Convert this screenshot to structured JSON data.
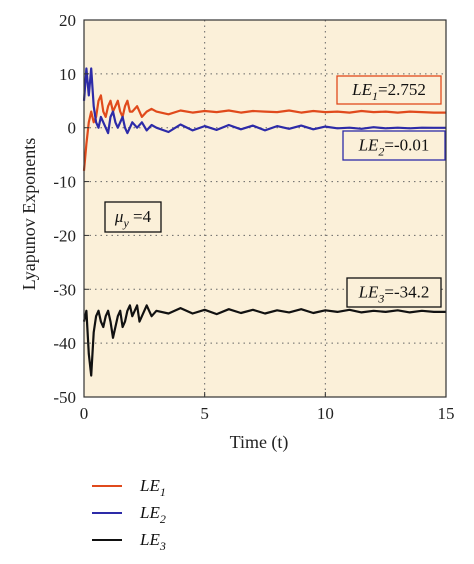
{
  "chart_data": {
    "type": "line",
    "xlabel": "Time (t)",
    "ylabel": "Lyapunov Exponents",
    "xlim": [
      0,
      15
    ],
    "ylim": [
      -50,
      20
    ],
    "xticks": [
      "0",
      "5",
      "10",
      "15"
    ],
    "yticks": [
      "20",
      "10",
      "0",
      "-10",
      "-20",
      "-30",
      "-40",
      "-50"
    ],
    "grid": "dotted",
    "background": "#fbf0d9",
    "series": [
      {
        "name": "LE1",
        "color": "#e04a1c",
        "x": [
          0,
          0.1,
          0.2,
          0.3,
          0.4,
          0.5,
          0.6,
          0.7,
          0.8,
          0.9,
          1.0,
          1.1,
          1.2,
          1.3,
          1.4,
          1.5,
          1.6,
          1.7,
          1.8,
          1.9,
          2.0,
          2.2,
          2.4,
          2.6,
          2.8,
          3.0,
          3.5,
          4.0,
          4.5,
          5.0,
          5.5,
          6.0,
          6.5,
          7.0,
          7.5,
          8.0,
          8.5,
          9.0,
          9.5,
          10.0,
          10.5,
          11.0,
          11.5,
          12.0,
          12.5,
          13.0,
          13.5,
          14.0,
          14.5,
          15.0
        ],
        "values": [
          -8,
          -3,
          1,
          3,
          1,
          2,
          5,
          6,
          3,
          2,
          4,
          5,
          3,
          4,
          5,
          3,
          2,
          4,
          5,
          3,
          3,
          4,
          2,
          3,
          3.5,
          3,
          2.5,
          3.2,
          2.8,
          3.1,
          2.9,
          3.2,
          2.8,
          3.1,
          3.0,
          2.9,
          3.2,
          2.8,
          3.1,
          2.9,
          3.0,
          2.8,
          3.1,
          2.9,
          3.0,
          2.8,
          3.0,
          2.9,
          2.8,
          2.8
        ]
      },
      {
        "name": "LE2",
        "color": "#2d2ba8",
        "x": [
          0,
          0.1,
          0.2,
          0.3,
          0.4,
          0.5,
          0.6,
          0.7,
          0.8,
          0.9,
          1.0,
          1.1,
          1.2,
          1.3,
          1.4,
          1.5,
          1.6,
          1.7,
          1.8,
          1.9,
          2.0,
          2.2,
          2.4,
          2.6,
          2.8,
          3.0,
          3.5,
          4.0,
          4.5,
          5.0,
          5.5,
          6.0,
          6.5,
          7.0,
          7.5,
          8.0,
          8.5,
          9.0,
          9.5,
          10.0,
          10.5,
          11.0,
          11.5,
          12.0,
          12.5,
          13.0,
          13.5,
          14.0,
          14.5,
          15.0
        ],
        "values": [
          5,
          11,
          6,
          11,
          4,
          1,
          0,
          2,
          1,
          0,
          -1,
          2,
          3,
          1,
          0,
          1,
          2,
          0,
          -1,
          0,
          1,
          0,
          1,
          -0.5,
          0.5,
          0,
          -0.8,
          0.6,
          -0.5,
          0.3,
          -0.4,
          0.5,
          -0.3,
          0.4,
          -0.5,
          0.3,
          -0.2,
          0.4,
          -0.3,
          0.2,
          -0.1,
          0.0,
          -0.2,
          0.1,
          -0.1,
          0.0,
          -0.1,
          0.0,
          -0.01,
          -0.01
        ]
      },
      {
        "name": "LE3",
        "color": "#111111",
        "x": [
          0,
          0.1,
          0.2,
          0.3,
          0.4,
          0.5,
          0.6,
          0.7,
          0.8,
          0.9,
          1.0,
          1.1,
          1.2,
          1.3,
          1.4,
          1.5,
          1.6,
          1.7,
          1.8,
          1.9,
          2.0,
          2.1,
          2.2,
          2.3,
          2.4,
          2.5,
          2.6,
          2.8,
          3.0,
          3.5,
          4.0,
          4.5,
          5.0,
          5.5,
          6.0,
          6.5,
          7.0,
          7.5,
          8.0,
          8.5,
          9.0,
          9.5,
          10.0,
          10.5,
          11.0,
          11.5,
          12.0,
          12.5,
          13.0,
          13.5,
          14.0,
          14.5,
          15.0
        ],
        "values": [
          -36,
          -34,
          -42,
          -46,
          -38,
          -35,
          -34,
          -36,
          -37,
          -35,
          -34,
          -36,
          -39,
          -37,
          -35,
          -34,
          -37,
          -36,
          -34,
          -33,
          -35,
          -34,
          -33,
          -36,
          -35,
          -34,
          -33,
          -35,
          -34,
          -34.5,
          -33.5,
          -34.5,
          -33.8,
          -34.6,
          -33.7,
          -34.4,
          -33.8,
          -34.5,
          -33.9,
          -34.3,
          -33.7,
          -34.4,
          -33.9,
          -34.2,
          -33.8,
          -34.3,
          -34.0,
          -34.2,
          -33.9,
          -34.3,
          -34.0,
          -34.2,
          -34.2
        ]
      }
    ],
    "annotations": {
      "le1": {
        "base": "LE",
        "sub": "1",
        "rest": "=2.752",
        "border": "#e04a1c"
      },
      "le2": {
        "base": "LE",
        "sub": "2",
        "rest": "=-0.01",
        "border": "#2d2ba8"
      },
      "le3": {
        "base": "LE",
        "sub": "3",
        "rest": "=-34.2",
        "border": "#111111"
      },
      "mu": {
        "base": "μ",
        "sub": "y",
        "rest": " =4",
        "border": "#111111"
      }
    },
    "legend": {
      "placement": "bottom-left",
      "entries": [
        {
          "base": "LE",
          "sub": "1",
          "color": "#e04a1c"
        },
        {
          "base": "LE",
          "sub": "2",
          "color": "#2d2ba8"
        },
        {
          "base": "LE",
          "sub": "3",
          "color": "#111111"
        }
      ]
    }
  }
}
